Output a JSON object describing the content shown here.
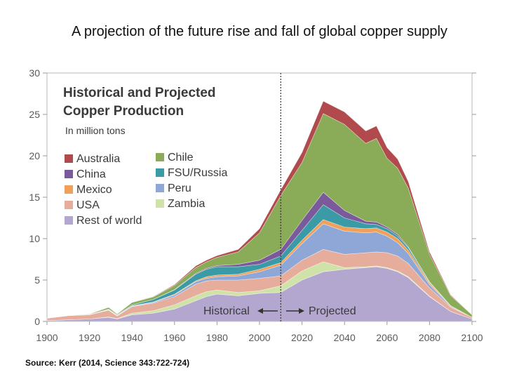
{
  "slide": {
    "title": "A projection of the future rise and fall of global copper supply",
    "source": "Source: Kerr (2014, Science 343:722-724)"
  },
  "chart_data": {
    "type": "area",
    "stacked": true,
    "title": "Historical and Projected",
    "title_line2": "Copper Production",
    "subtitle": "In million tons",
    "xlabel": "",
    "ylabel": "",
    "xlim": [
      1900,
      2100
    ],
    "ylim": [
      0,
      30
    ],
    "x_ticks": [
      1900,
      1920,
      1940,
      1960,
      1980,
      2000,
      2020,
      2040,
      2060,
      2080,
      2100
    ],
    "y_ticks": [
      0,
      5,
      10,
      15,
      20,
      25,
      30
    ],
    "divider_year": 2010,
    "annotations": {
      "historical": "Historical",
      "projected": "Projected"
    },
    "legend_position": "top-left",
    "x": [
      1900,
      1910,
      1920,
      1929,
      1933,
      1940,
      1950,
      1960,
      1970,
      1975,
      1980,
      1990,
      2000,
      2010,
      2020,
      2030,
      2040,
      2050,
      2055,
      2060,
      2065,
      2070,
      2080,
      2090,
      2100
    ],
    "series": [
      {
        "name": "Rest of world",
        "color": "#b3a7cf",
        "values": [
          0.1,
          0.2,
          0.3,
          0.5,
          0.3,
          0.8,
          1.0,
          1.5,
          2.5,
          3.0,
          3.3,
          3.1,
          3.4,
          3.5,
          5.0,
          6.0,
          6.3,
          6.5,
          6.6,
          6.4,
          6.0,
          5.3,
          3.0,
          1.2,
          0.3
        ]
      },
      {
        "name": "Zambia",
        "color": "#cfe2a8",
        "values": [
          0,
          0,
          0,
          0.05,
          0.05,
          0.2,
          0.3,
          0.5,
          0.6,
          0.6,
          0.5,
          0.4,
          0.3,
          0.8,
          1.1,
          1.2,
          0.2,
          0.1,
          0.1,
          0.1,
          0.1,
          0.1,
          0.05,
          0,
          0
        ]
      },
      {
        "name": "USA",
        "color": "#e7ad9c",
        "values": [
          0.3,
          0.5,
          0.5,
          0.8,
          0.3,
          0.8,
          0.9,
          1.0,
          1.4,
          1.3,
          1.2,
          1.5,
          1.5,
          1.2,
          1.3,
          1.5,
          1.6,
          1.7,
          1.7,
          1.8,
          1.8,
          1.6,
          1.0,
          0.5,
          0.2
        ]
      },
      {
        "name": "Peru",
        "color": "#8fa7d6",
        "values": [
          0,
          0,
          0,
          0.05,
          0.05,
          0.05,
          0.1,
          0.2,
          0.3,
          0.3,
          0.4,
          0.5,
          0.8,
          1.3,
          2.0,
          3.1,
          2.8,
          2.4,
          2.4,
          2.0,
          1.6,
          1.2,
          0.4,
          0.1,
          0
        ]
      },
      {
        "name": "Mexico",
        "color": "#f0a058",
        "values": [
          0,
          0,
          0.05,
          0.05,
          0.05,
          0.05,
          0.05,
          0.1,
          0.1,
          0.2,
          0.2,
          0.2,
          0.3,
          0.3,
          0.4,
          0.5,
          0.5,
          0.5,
          0.5,
          0.5,
          0.5,
          0.4,
          0.2,
          0.1,
          0
        ]
      },
      {
        "name": "FSU/Russia",
        "color": "#3a9aa6",
        "values": [
          0,
          0,
          0,
          0.05,
          0.05,
          0.1,
          0.3,
          0.5,
          0.8,
          0.9,
          1.0,
          0.9,
          0.6,
          0.8,
          1.2,
          1.8,
          1.1,
          0.6,
          0.4,
          0.4,
          0.3,
          0.3,
          0.1,
          0,
          0
        ]
      },
      {
        "name": "China",
        "color": "#7a5a9a",
        "values": [
          0,
          0,
          0,
          0,
          0,
          0,
          0,
          0.05,
          0.1,
          0.1,
          0.15,
          0.3,
          0.5,
          0.8,
          1.2,
          1.5,
          0.9,
          0.3,
          0.3,
          0.2,
          0.2,
          0.1,
          0.05,
          0,
          0
        ]
      },
      {
        "name": "Chile",
        "color": "#8aab58",
        "values": [
          0,
          0,
          0.05,
          0.2,
          0.1,
          0.3,
          0.3,
          0.5,
          0.7,
          0.8,
          1.0,
          1.5,
          3.3,
          6.5,
          7.0,
          9.5,
          10.4,
          9.4,
          10.1,
          8.3,
          8.0,
          7.1,
          3.3,
          1.2,
          0.3
        ]
      },
      {
        "name": "Australia",
        "color": "#b14a4c",
        "values": [
          0,
          0,
          0,
          0,
          0,
          0,
          0.05,
          0.1,
          0.2,
          0.2,
          0.2,
          0.3,
          0.5,
          0.7,
          1.2,
          1.5,
          1.5,
          1.5,
          1.5,
          1.3,
          1.1,
          0.8,
          0.3,
          0.1,
          0
        ]
      }
    ],
    "legend_col1": [
      "Australia",
      "China",
      "Mexico",
      "USA",
      "Rest of world"
    ],
    "legend_col2": [
      "Chile",
      "FSU/Russia",
      "Peru",
      "Zambia"
    ]
  }
}
